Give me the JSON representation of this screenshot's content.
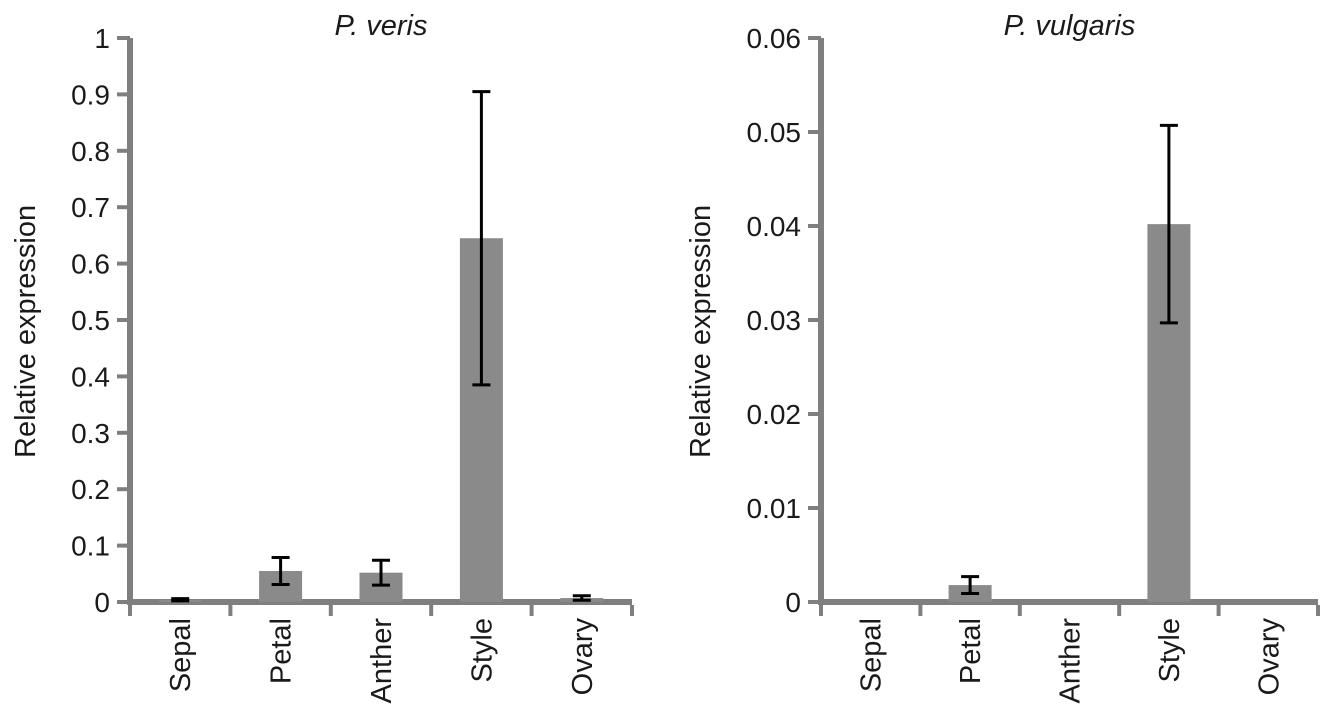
{
  "chart_data": [
    {
      "type": "bar",
      "title": "P. veris",
      "ylabel": "Relative expression",
      "categories": [
        "Sepal",
        "Petal",
        "Anther",
        "Style",
        "Ovary"
      ],
      "values": [
        0.004,
        0.055,
        0.052,
        0.645,
        0.007
      ],
      "errors": [
        0.002,
        0.024,
        0.022,
        0.26,
        0.004
      ],
      "ylim": [
        0,
        1
      ],
      "yticks": [
        0,
        0.1,
        0.2,
        0.3,
        0.4,
        0.5,
        0.6,
        0.7,
        0.8,
        0.9,
        1
      ],
      "ytick_labels": [
        "0",
        "0.1",
        "0.2",
        "0.3",
        "0.4",
        "0.5",
        "0.6",
        "0.7",
        "0.8",
        "0.9",
        "1"
      ],
      "grid": false,
      "legend_position": "none"
    },
    {
      "type": "bar",
      "title": "P. vulgaris",
      "ylabel": "Relative expression",
      "categories": [
        "Sepal",
        "Petal",
        "Anther",
        "Style",
        "Ovary"
      ],
      "values": [
        0,
        0.0018,
        0,
        0.0402,
        0
      ],
      "errors": [
        0,
        0.0009,
        0,
        0.0105,
        0
      ],
      "ylim": [
        0,
        0.06
      ],
      "yticks": [
        0,
        0.01,
        0.02,
        0.03,
        0.04,
        0.05,
        0.06
      ],
      "ytick_labels": [
        "0",
        "0.01",
        "0.02",
        "0.03",
        "0.04",
        "0.05",
        "0.06"
      ],
      "grid": false,
      "legend_position": "none"
    }
  ],
  "style": {
    "bar_color": "#8a8a8a",
    "axis_color": "#7f7f7f",
    "error_color": "#000000",
    "text_color": "#1a1a1a"
  }
}
